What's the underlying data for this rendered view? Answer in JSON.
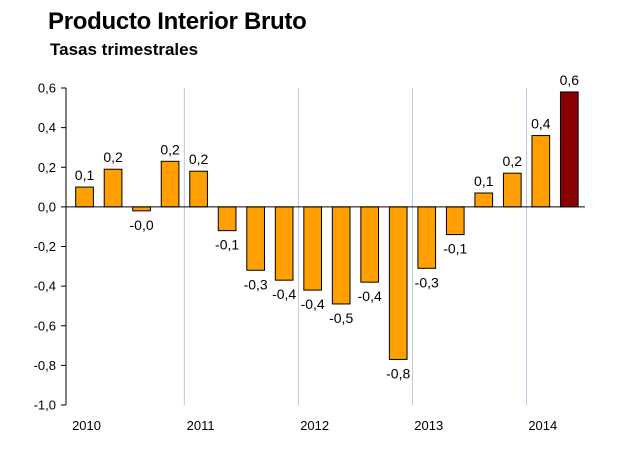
{
  "chart_data": {
    "type": "bar",
    "title": "Producto Interior Bruto",
    "subtitle": "Tasas trimestrales",
    "xlabel": "",
    "ylabel": "",
    "ylim": [
      -1.0,
      0.6
    ],
    "yticks": [
      "-1,0",
      "-0,8",
      "-0,6",
      "-0,4",
      "-0,2",
      "0,0",
      "0,2",
      "0,4",
      "0,6"
    ],
    "ytick_values": [
      -1.0,
      -0.8,
      -0.6,
      -0.4,
      -0.2,
      0.0,
      0.2,
      0.4,
      0.6
    ],
    "year_labels": [
      "2010",
      "2011",
      "2012",
      "2013",
      "2014"
    ],
    "values": [
      0.1,
      0.19,
      -0.02,
      0.23,
      0.18,
      -0.12,
      -0.32,
      -0.37,
      -0.42,
      -0.49,
      -0.38,
      -0.77,
      -0.31,
      -0.14,
      0.07,
      0.17,
      0.36,
      0.58
    ],
    "data_labels": [
      "0,1",
      "0,2",
      "-0,0",
      "0,2",
      "0,2",
      "-0,1",
      "-0,3",
      "-0,4",
      "-0,4",
      "-0,5",
      "-0,4",
      "-0,8",
      "-0,3",
      "-0,1",
      "0,1",
      "0,2",
      "0,4",
      "0,6"
    ],
    "colors": {
      "bar": "#ff9f00",
      "highlight": "#8b0000",
      "gridline": "#b8c8dc",
      "axis": "#000000"
    },
    "grid": "vertical year separators",
    "highlight_last": true
  }
}
